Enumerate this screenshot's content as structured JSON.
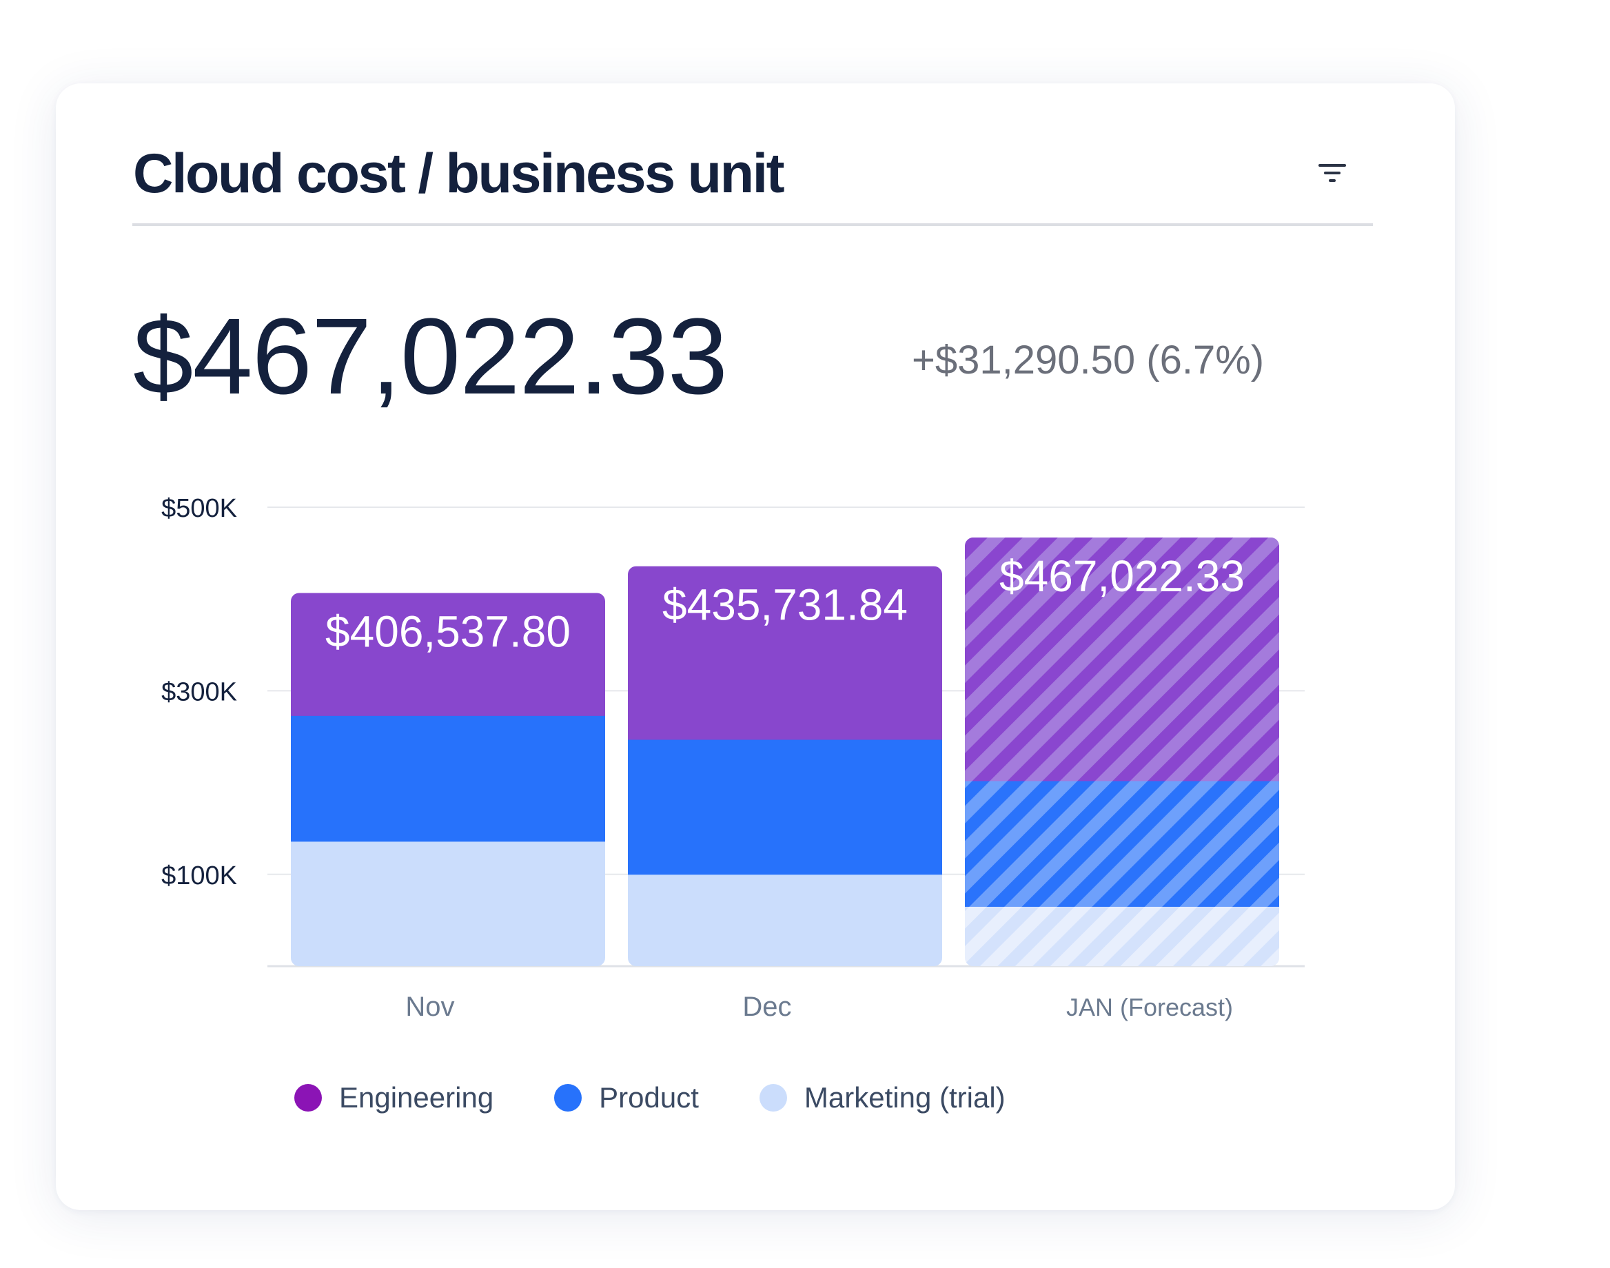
{
  "card": {
    "title": "Cloud cost / business unit",
    "filter_icon": "filter-icon"
  },
  "summary": {
    "total": "$467,022.33",
    "change": "+$31,290.50 (6.7%)"
  },
  "colors": {
    "engineering": "#8847cd",
    "product": "#2772fb",
    "marketing": "#cbddfc",
    "legend_engineering": "#8b14b5",
    "axis_text": "#14213d",
    "category_text": "#6b7a8f",
    "gridline": "#e6e8ec"
  },
  "chart_data": {
    "type": "bar",
    "stacked": true,
    "categories": [
      "Nov",
      "Dec",
      "JAN (Forecast)"
    ],
    "forecast": [
      false,
      false,
      true
    ],
    "y_ticks": [
      {
        "value": 0,
        "label": ""
      },
      {
        "value": 100000,
        "label": "$100K"
      },
      {
        "value": 300000,
        "label": "$300K"
      },
      {
        "value": 500000,
        "label": "$500K"
      }
    ],
    "ylim": [
      0,
      500000
    ],
    "grid": true,
    "legend_position": "bottom",
    "series": [
      {
        "name": "Marketing (trial)",
        "color_key": "marketing",
        "values": [
          136000,
          100000,
          65000
        ]
      },
      {
        "name": "Product",
        "color_key": "product",
        "values": [
          137000,
          147000,
          137000
        ]
      },
      {
        "name": "Engineering",
        "color_key": "engineering",
        "values": [
          133537.8,
          188731.84,
          265022.33
        ]
      }
    ],
    "totals": [
      406537.8,
      435731.84,
      467022.33
    ],
    "total_labels": [
      "$406,537.80",
      "$435,731.84",
      "$467,022.33"
    ]
  },
  "legend": [
    {
      "label": "Engineering",
      "color_key": "legend_engineering"
    },
    {
      "label": "Product",
      "color_key": "product"
    },
    {
      "label": "Marketing (trial)",
      "color_key": "marketing"
    }
  ]
}
